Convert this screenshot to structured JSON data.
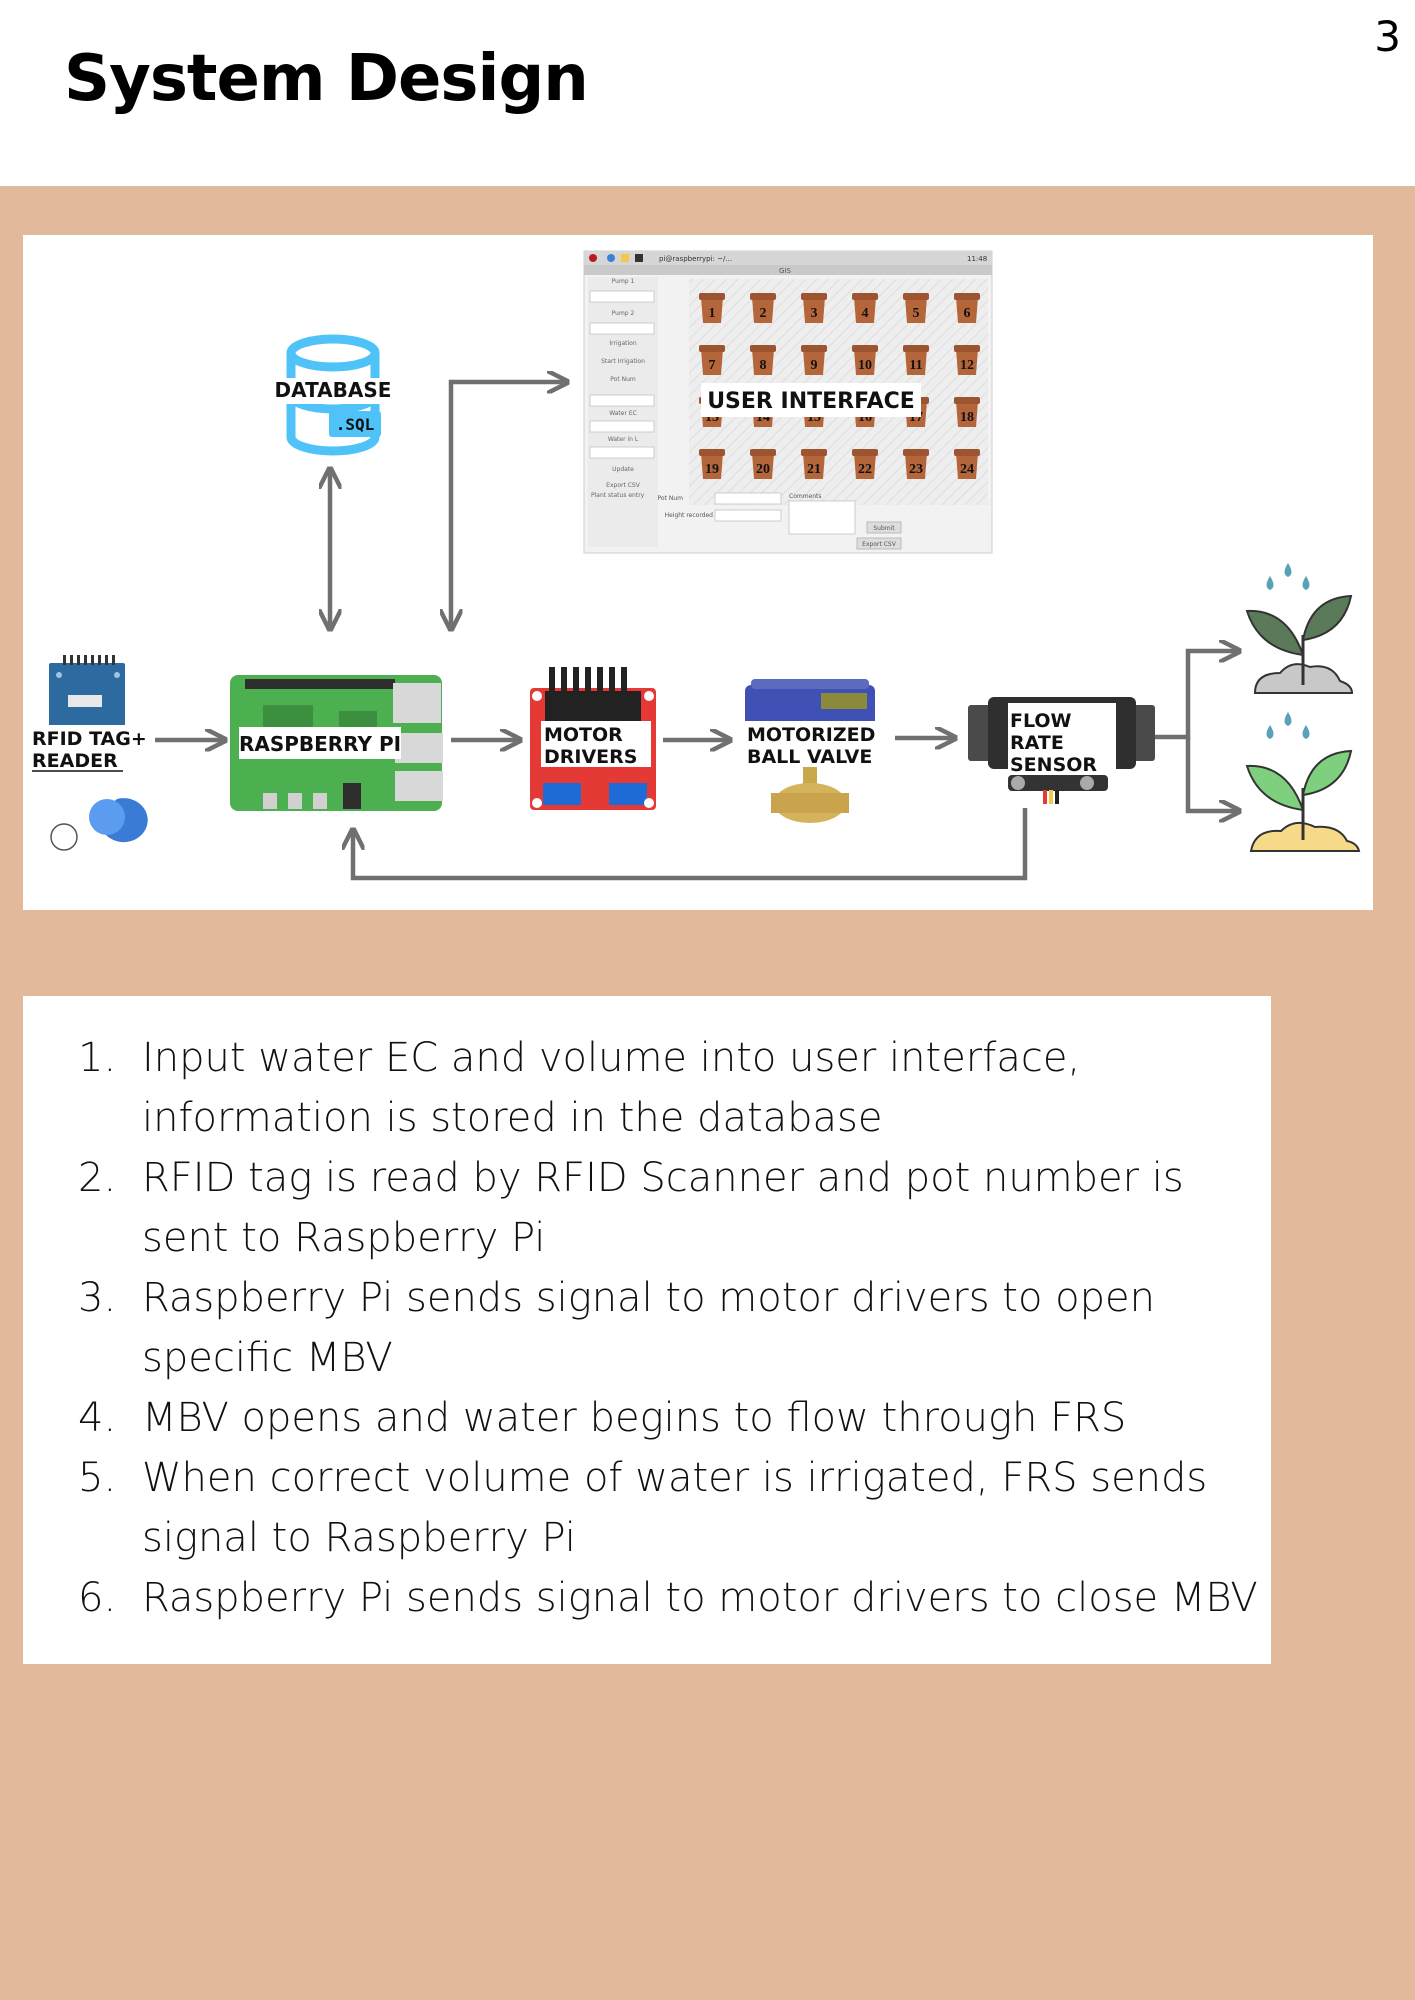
{
  "slide": {
    "title": "System Design",
    "page_number": "3"
  },
  "diagram": {
    "labels": {
      "database": "DATABASE",
      "sql": ".SQL",
      "user_interface": "USER INTERFACE",
      "rfid_line1": "RFID TAG+",
      "rfid_line2": "READER",
      "raspberry_pi": "RASPBERRY PI",
      "motor_line1": "MOTOR",
      "motor_line2": "DRIVERS",
      "valve_line1": "MOTORIZED",
      "valve_line2": "BALL VALVE",
      "flow_line1": "FLOW",
      "flow_line2": "RATE",
      "flow_line3": "SENSOR"
    },
    "ui_screenshot": {
      "taskbar_text": "pi@raspberrypi: ~/...",
      "clock": "11:48",
      "window_title": "GIS",
      "pot_numbers": [
        "1",
        "2",
        "3",
        "4",
        "5",
        "6",
        "7",
        "8",
        "9",
        "10",
        "11",
        "12",
        "13",
        "14",
        "15",
        "16",
        "17",
        "18",
        "19",
        "20",
        "21",
        "22",
        "23",
        "24"
      ],
      "side_labels": [
        "Pump 1",
        "Pump 2",
        "Irrigation",
        "Start Irrigation",
        "Pot Num",
        "Water EC",
        "Water in L",
        "Update",
        "Export CSV",
        "Plant status entry"
      ],
      "form_labels": {
        "pot_num": "Pot Num",
        "height": "Height recorded",
        "comments": "Comments",
        "submit": "Submit",
        "export": "Export CSV"
      }
    },
    "colors": {
      "arrow": "#707070",
      "database": "#4fc3f7",
      "board_green": "#4caf50",
      "motor_red": "#e53935",
      "valve_blue": "#3f51b5",
      "pot": "#b5653a",
      "leaf": "#5a7a5a",
      "leaf_light": "#7ed07e",
      "water": "#5aa0b8",
      "soil_grey": "#c8c8c8",
      "soil_yellow": "#f7d98a"
    }
  },
  "steps": [
    {
      "num": "1.",
      "text": "Input water EC and volume into user interface, information is stored in the database"
    },
    {
      "num": "2.",
      "text": "RFID tag is read by RFID Scanner and pot number is sent to Raspberry Pi"
    },
    {
      "num": "3.",
      "text": "Raspberry Pi sends signal to motor drivers to open specific MBV"
    },
    {
      "num": "4.",
      "text": "MBV opens and water begins to flow through FRS"
    },
    {
      "num": "5.",
      "text": "When correct volume of water is irrigated, FRS sends signal to Raspberry Pi"
    },
    {
      "num": "6.",
      "text": "Raspberry Pi sends signal to motor drivers to close MBV"
    }
  ]
}
